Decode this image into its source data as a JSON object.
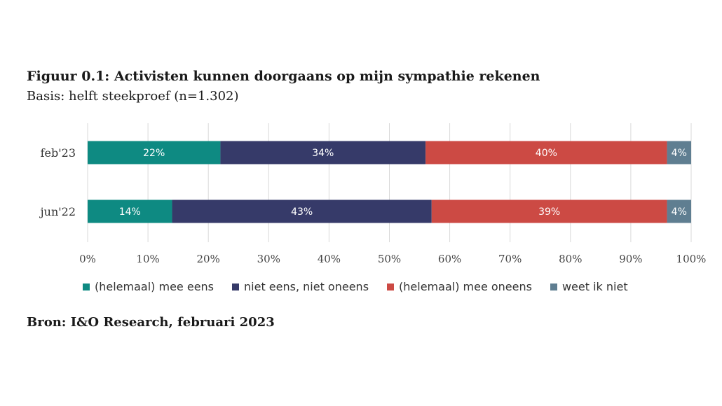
{
  "title": "Figuur 0.1: Activisten kunnen doorgaans op mijn sympathie rekenen",
  "subtitle": "Basis: helft steekproef (n=1.302)",
  "source": "Bron: I&O Research, februari 2023",
  "chart_data": {
    "type": "bar",
    "orientation": "horizontal",
    "stacked": true,
    "categories": [
      "feb'23",
      "jun'22"
    ],
    "series": [
      {
        "name": "(helemaal) mee eens",
        "color": "#0e8a82",
        "values": [
          22,
          14
        ],
        "labels": [
          "22%",
          "14%"
        ]
      },
      {
        "name": "niet eens, niet oneens",
        "color": "#363a69",
        "values": [
          34,
          43
        ],
        "labels": [
          "34%",
          "43%"
        ]
      },
      {
        "name": "(helemaal) mee oneens",
        "color": "#cc4a44",
        "values": [
          40,
          39
        ],
        "labels": [
          "40%",
          "39%"
        ]
      },
      {
        "name": "weet ik niet",
        "color": "#5f7e91",
        "values": [
          4,
          4
        ],
        "labels": [
          "4%",
          "4%"
        ]
      }
    ],
    "xlim": [
      0,
      100
    ],
    "xticks": [
      "0%",
      "10%",
      "20%",
      "30%",
      "40%",
      "50%",
      "60%",
      "70%",
      "80%",
      "90%",
      "100%"
    ],
    "grid": true,
    "legend_position": "bottom"
  }
}
